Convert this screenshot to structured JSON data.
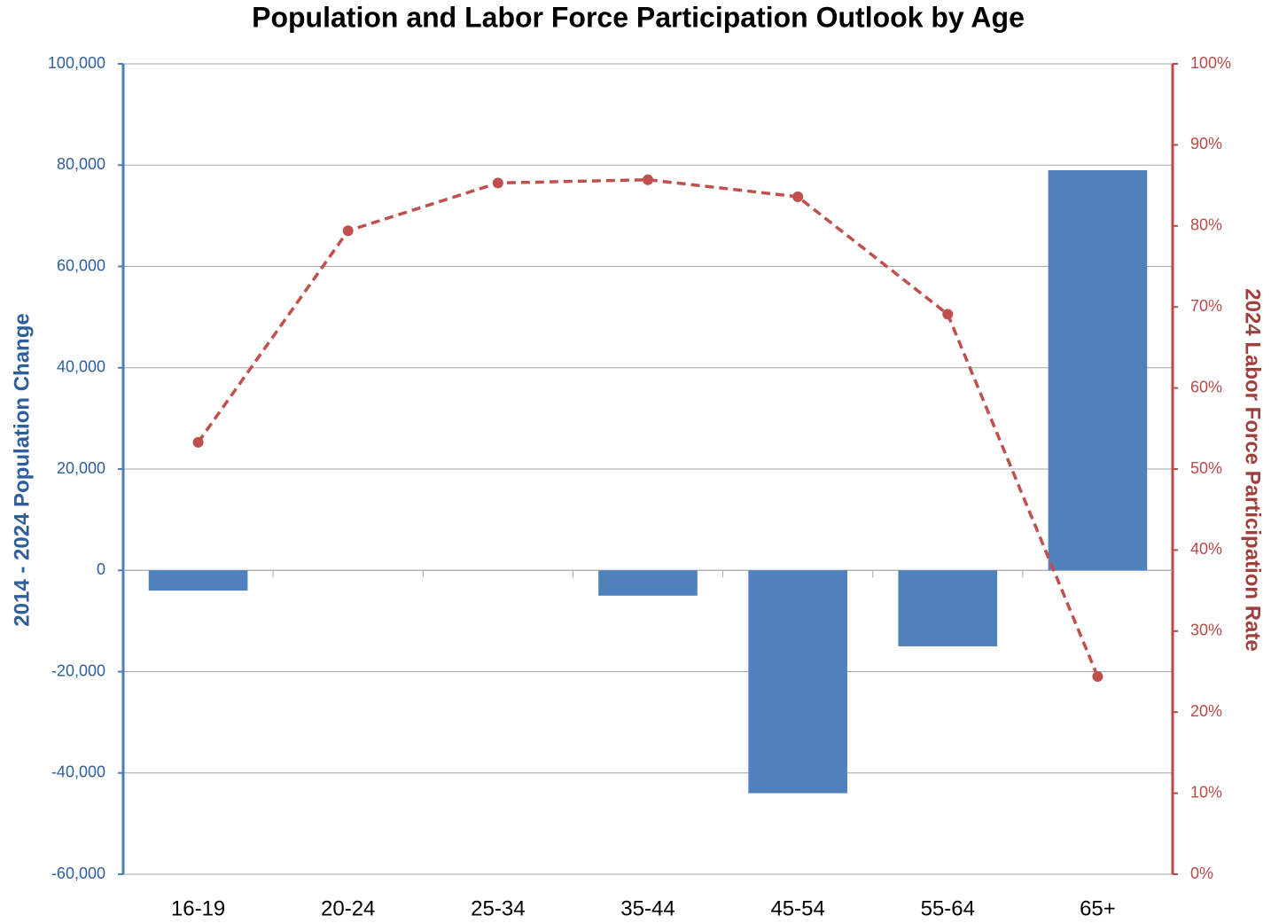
{
  "chart_data": {
    "type": "bar_line",
    "title": "Population and Labor Force Participation Outlook by Age",
    "ylabel": "2014 - 2024 Population Change",
    "y2label": "2024 Labor Force Participation Rate",
    "categories": [
      "16-19",
      "20-24",
      "25-34",
      "35-44",
      "45-54",
      "55-64",
      "65+"
    ],
    "series": [
      {
        "type": "bar",
        "color": "#4f81bd",
        "values": [
          -4000,
          0,
          0,
          -5000,
          -44000,
          -15000,
          79000
        ]
      },
      {
        "type": "line",
        "axis": "y2",
        "color": "#c0504d",
        "dashed": true,
        "values": [
          53.3,
          79.4,
          85.3,
          85.7,
          83.6,
          69.1,
          24.4
        ]
      }
    ],
    "ylim": [
      -60000,
      100000
    ],
    "yticks": [
      {
        "value": -60000,
        "label": "-60,000"
      },
      {
        "value": -40000,
        "label": "-40,000"
      },
      {
        "value": -20000,
        "label": "-20,000"
      },
      0,
      {
        "value": 20000,
        "label": "20,000"
      },
      {
        "value": 40000,
        "label": "40,000"
      },
      {
        "value": 60000,
        "label": "60,000"
      },
      {
        "value": 80000,
        "label": "80,000"
      },
      {
        "value": 100000,
        "label": "100,000"
      }
    ],
    "y2lim": [
      0,
      100
    ],
    "y2ticks": [
      {
        "value": 0,
        "label": "0%"
      },
      {
        "value": 10,
        "label": "10%"
      },
      {
        "value": 20,
        "label": "20%"
      },
      {
        "value": 30,
        "label": "30%"
      },
      {
        "value": 40,
        "label": "40%"
      },
      {
        "value": 50,
        "label": "50%"
      },
      {
        "value": 60,
        "label": "60%"
      },
      {
        "value": 70,
        "label": "70%"
      },
      {
        "value": 80,
        "label": "80%"
      },
      {
        "value": 90,
        "label": "90%"
      },
      {
        "value": 100,
        "label": "100%"
      }
    ],
    "grid": true
  }
}
